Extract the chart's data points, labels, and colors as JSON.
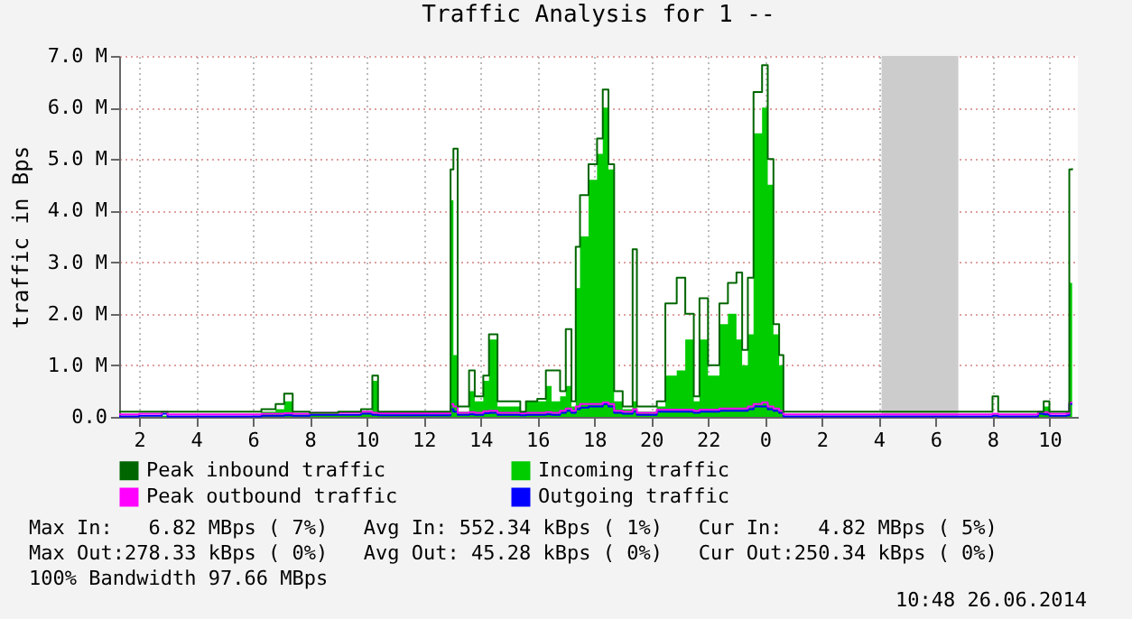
{
  "chart_data": {
    "type": "area",
    "title": "Traffic Analysis for 1 --",
    "ylabel": "traffic in Bps",
    "x": [
      "2014-06-25T01:18",
      "2014-06-25T02:00",
      "2014-06-25T02:48",
      "2014-06-25T03:00",
      "2014-06-25T06:00",
      "2014-06-25T06:18",
      "2014-06-25T06:48",
      "2014-06-25T07:06",
      "2014-06-25T07:24",
      "2014-06-25T08:00",
      "2014-06-25T09:00",
      "2014-06-25T09:48",
      "2014-06-25T10:12",
      "2014-06-25T10:24",
      "2014-06-25T12:48",
      "2014-06-25T12:57",
      "2014-06-25T13:03",
      "2014-06-25T13:12",
      "2014-06-25T13:36",
      "2014-06-25T13:48",
      "2014-06-25T14:06",
      "2014-06-25T14:18",
      "2014-06-25T14:36",
      "2014-06-25T15:24",
      "2014-06-25T15:36",
      "2014-06-25T16:00",
      "2014-06-25T16:18",
      "2014-06-25T16:30",
      "2014-06-25T16:48",
      "2014-06-25T17:00",
      "2014-06-25T17:12",
      "2014-06-25T17:21",
      "2014-06-25T17:30",
      "2014-06-25T17:48",
      "2014-06-25T18:06",
      "2014-06-25T18:18",
      "2014-06-25T18:30",
      "2014-06-25T18:42",
      "2014-06-25T19:00",
      "2014-06-25T19:21",
      "2014-06-25T19:30",
      "2014-06-25T20:12",
      "2014-06-25T20:30",
      "2014-06-25T20:54",
      "2014-06-25T21:12",
      "2014-06-25T21:30",
      "2014-06-25T21:42",
      "2014-06-25T22:00",
      "2014-06-25T22:24",
      "2014-06-25T22:42",
      "2014-06-25T23:00",
      "2014-06-25T23:12",
      "2014-06-25T23:24",
      "2014-06-25T23:36",
      "2014-06-25T23:54",
      "2014-06-26T00:06",
      "2014-06-26T00:18",
      "2014-06-26T00:30",
      "2014-06-26T00:39",
      "2014-06-26T04:00",
      "2014-06-26T07:00",
      "2014-06-26T08:00",
      "2014-06-26T08:12",
      "2014-06-26T09:36",
      "2014-06-26T09:48",
      "2014-06-26T10:00",
      "2014-06-26T10:36",
      "2014-06-26T10:42",
      "2014-06-26T10:48"
    ],
    "series": [
      {
        "name": "Peak inbound traffic",
        "type": "step",
        "color": "#006600",
        "values": [
          0.1,
          0.1,
          0.1,
          0.1,
          0.1,
          0.15,
          0.25,
          0.45,
          0.1,
          0.08,
          0.1,
          0.15,
          0.8,
          0.1,
          0.1,
          4.8,
          5.2,
          0.2,
          0.9,
          0.4,
          0.8,
          1.6,
          0.3,
          0.1,
          0.3,
          0.35,
          0.9,
          0.9,
          0.5,
          1.7,
          0.3,
          3.3,
          4.3,
          4.9,
          5.4,
          6.35,
          4.9,
          0.5,
          0.2,
          3.25,
          0.2,
          0.3,
          2.2,
          2.7,
          2.0,
          0.4,
          2.3,
          1.0,
          2.2,
          2.6,
          2.8,
          1.3,
          2.7,
          6.3,
          6.82,
          5.0,
          1.8,
          1.2,
          0.1,
          0.1,
          0.1,
          0.4,
          0.1,
          0.1,
          0.3,
          0.1,
          0.1,
          4.8,
          4.82
        ]
      },
      {
        "name": "Incoming traffic",
        "color": "#00cc00",
        "values": [
          0.02,
          0.01,
          0.02,
          0.01,
          0.02,
          0.1,
          0.15,
          0.3,
          0.05,
          0.05,
          0.05,
          0.1,
          0.7,
          0.05,
          0.05,
          4.2,
          1.2,
          0.1,
          0.5,
          0.3,
          0.7,
          1.5,
          0.2,
          0.05,
          0.3,
          0.3,
          0.6,
          0.3,
          0.4,
          0.6,
          0.2,
          2.5,
          3.5,
          4.6,
          5.1,
          6.0,
          4.8,
          0.3,
          0.15,
          0.3,
          0.1,
          0.2,
          0.8,
          0.9,
          1.5,
          0.3,
          1.5,
          0.8,
          1.8,
          2.0,
          1.5,
          1.0,
          1.6,
          5.5,
          6.0,
          4.5,
          1.6,
          1.0,
          0.02,
          0.01,
          0.01,
          0.05,
          0.02,
          0.1,
          0.2,
          0.03,
          0.03,
          2.6,
          4.82
        ]
      },
      {
        "name": "Peak outbound traffic",
        "type": "step",
        "color": "#ff00ff",
        "values": [
          0.05,
          0.06,
          0.1,
          0.05,
          0.05,
          0.06,
          0.06,
          0.07,
          0.06,
          0.08,
          0.08,
          0.1,
          0.08,
          0.07,
          0.07,
          0.25,
          0.2,
          0.08,
          0.09,
          0.08,
          0.11,
          0.12,
          0.08,
          0.07,
          0.08,
          0.08,
          0.09,
          0.08,
          0.12,
          0.16,
          0.12,
          0.2,
          0.25,
          0.25,
          0.25,
          0.28,
          0.25,
          0.12,
          0.1,
          0.15,
          0.08,
          0.14,
          0.14,
          0.14,
          0.14,
          0.12,
          0.14,
          0.14,
          0.16,
          0.16,
          0.16,
          0.16,
          0.2,
          0.25,
          0.28,
          0.2,
          0.16,
          0.12,
          0.05,
          0.05,
          0.05,
          0.06,
          0.05,
          0.1,
          0.09,
          0.06,
          0.07,
          0.28,
          0.28
        ]
      },
      {
        "name": "Outgoing traffic",
        "type": "step",
        "color": "#0000ff",
        "values": [
          0.01,
          0.02,
          0.06,
          0.01,
          0.01,
          0.02,
          0.02,
          0.03,
          0.02,
          0.04,
          0.04,
          0.06,
          0.04,
          0.03,
          0.03,
          0.15,
          0.1,
          0.04,
          0.05,
          0.04,
          0.07,
          0.08,
          0.04,
          0.03,
          0.04,
          0.04,
          0.05,
          0.04,
          0.08,
          0.12,
          0.08,
          0.15,
          0.18,
          0.2,
          0.2,
          0.25,
          0.2,
          0.08,
          0.06,
          0.1,
          0.04,
          0.1,
          0.1,
          0.1,
          0.1,
          0.08,
          0.1,
          0.1,
          0.12,
          0.12,
          0.12,
          0.12,
          0.15,
          0.2,
          0.2,
          0.15,
          0.12,
          0.08,
          0.01,
          0.01,
          0.01,
          0.02,
          0.01,
          0.06,
          0.05,
          0.02,
          0.03,
          0.25,
          0.25
        ]
      }
    ],
    "xlim": [
      "2014-06-25T01:18",
      "2014-06-26T11:00"
    ],
    "xticks": [
      {
        "value": "2014-06-25T02:00",
        "label": "2"
      },
      {
        "value": "2014-06-25T04:00",
        "label": "4"
      },
      {
        "value": "2014-06-25T06:00",
        "label": "6"
      },
      {
        "value": "2014-06-25T08:00",
        "label": "8"
      },
      {
        "value": "2014-06-25T10:00",
        "label": "10"
      },
      {
        "value": "2014-06-25T12:00",
        "label": "12"
      },
      {
        "value": "2014-06-25T14:00",
        "label": "14"
      },
      {
        "value": "2014-06-25T16:00",
        "label": "16"
      },
      {
        "value": "2014-06-25T18:00",
        "label": "18"
      },
      {
        "value": "2014-06-25T20:00",
        "label": "20"
      },
      {
        "value": "2014-06-25T22:00",
        "label": "22"
      },
      {
        "value": "2014-06-26T00:00",
        "label": "0"
      },
      {
        "value": "2014-06-26T02:00",
        "label": "2"
      },
      {
        "value": "2014-06-26T04:00",
        "label": "4"
      },
      {
        "value": "2014-06-26T06:00",
        "label": "6"
      },
      {
        "value": "2014-06-26T08:00",
        "label": "8"
      },
      {
        "value": "2014-06-26T10:00",
        "label": "10"
      }
    ],
    "ylim": [
      0,
      7
    ],
    "yticks": [
      {
        "value": 0,
        "label": "0.0"
      },
      {
        "value": 1,
        "label": "1.0 M"
      },
      {
        "value": 2,
        "label": "2.0 M"
      },
      {
        "value": 3,
        "label": "3.0 M"
      },
      {
        "value": 4,
        "label": "4.0 M"
      },
      {
        "value": 5,
        "label": "5.0 M"
      },
      {
        "value": 6,
        "label": "6.0 M"
      },
      {
        "value": 7,
        "label": "7.0 M"
      }
    ],
    "bands": [
      {
        "axis": "x",
        "from": "2014-06-26T04:06",
        "to": "2014-06-26T06:48",
        "color": "#cccccc"
      }
    ],
    "grid": true,
    "legend": "bottom",
    "annotations": [
      "Max In:   6.82 MBps ( 7%)   Avg In: 552.34 kBps ( 1%)   Cur In:   4.82 MBps ( 5%)",
      "Max Out:278.33 kBps ( 0%)   Avg Out: 45.28 kBps ( 0%)   Cur Out:250.34 kBps ( 0%)",
      "100% Bandwidth 97.66 MBps",
      "10:48 26.06.2014"
    ]
  }
}
